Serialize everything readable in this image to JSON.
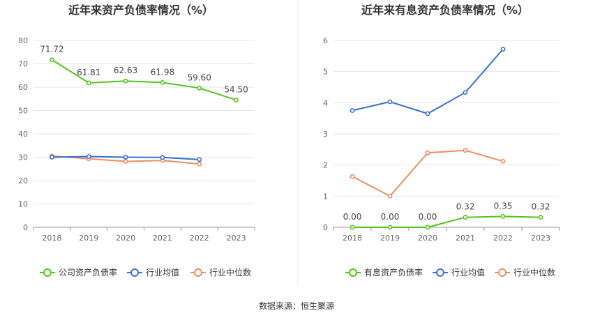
{
  "source_label": "数据来源：恒生聚源",
  "chart_data": [
    {
      "type": "line",
      "title": "近年来资产负债率情况（%）",
      "categories": [
        "2018",
        "2019",
        "2020",
        "2021",
        "2022",
        "2023"
      ],
      "ylim": [
        0,
        80
      ],
      "yticks": [
        "0",
        "10",
        "20",
        "30",
        "40",
        "50",
        "60",
        "70",
        "80"
      ],
      "grid": true,
      "legend_position": "bottom",
      "series": [
        {
          "name": "公司资产负债率",
          "color": "#52c41a",
          "values": [
            71.72,
            61.81,
            62.63,
            61.98,
            59.6,
            54.5
          ],
          "labels": [
            "71.72",
            "61.81",
            "62.63",
            "61.98",
            "59.60",
            "54.50"
          ]
        },
        {
          "name": "行业均值",
          "color": "#3a6fd8",
          "values": [
            30.0,
            30.3,
            30.0,
            29.9,
            29.0,
            null
          ]
        },
        {
          "name": "行业中位数",
          "color": "#f08c62",
          "values": [
            30.5,
            29.3,
            28.2,
            28.6,
            27.1,
            null
          ]
        }
      ]
    },
    {
      "type": "line",
      "title": "近年来有息资产负债率情况（%）",
      "categories": [
        "2018",
        "2019",
        "2020",
        "2021",
        "2022",
        "2023"
      ],
      "ylim": [
        0,
        6
      ],
      "yticks": [
        "0",
        "1",
        "2",
        "3",
        "4",
        "5",
        "6"
      ],
      "grid": true,
      "legend_position": "bottom",
      "series": [
        {
          "name": "有息资产负债率",
          "color": "#52c41a",
          "values": [
            0.0,
            0.0,
            0.0,
            0.32,
            0.35,
            0.32
          ],
          "labels": [
            "0.00",
            "0.00",
            "0.00",
            "0.32",
            "0.35",
            "0.32"
          ]
        },
        {
          "name": "行业均值",
          "color": "#3a6fd8",
          "values": [
            3.75,
            4.03,
            3.65,
            4.33,
            5.72,
            null
          ]
        },
        {
          "name": "行业中位数",
          "color": "#f08c62",
          "values": [
            1.63,
            1.0,
            2.39,
            2.47,
            2.12,
            null
          ]
        }
      ]
    }
  ]
}
